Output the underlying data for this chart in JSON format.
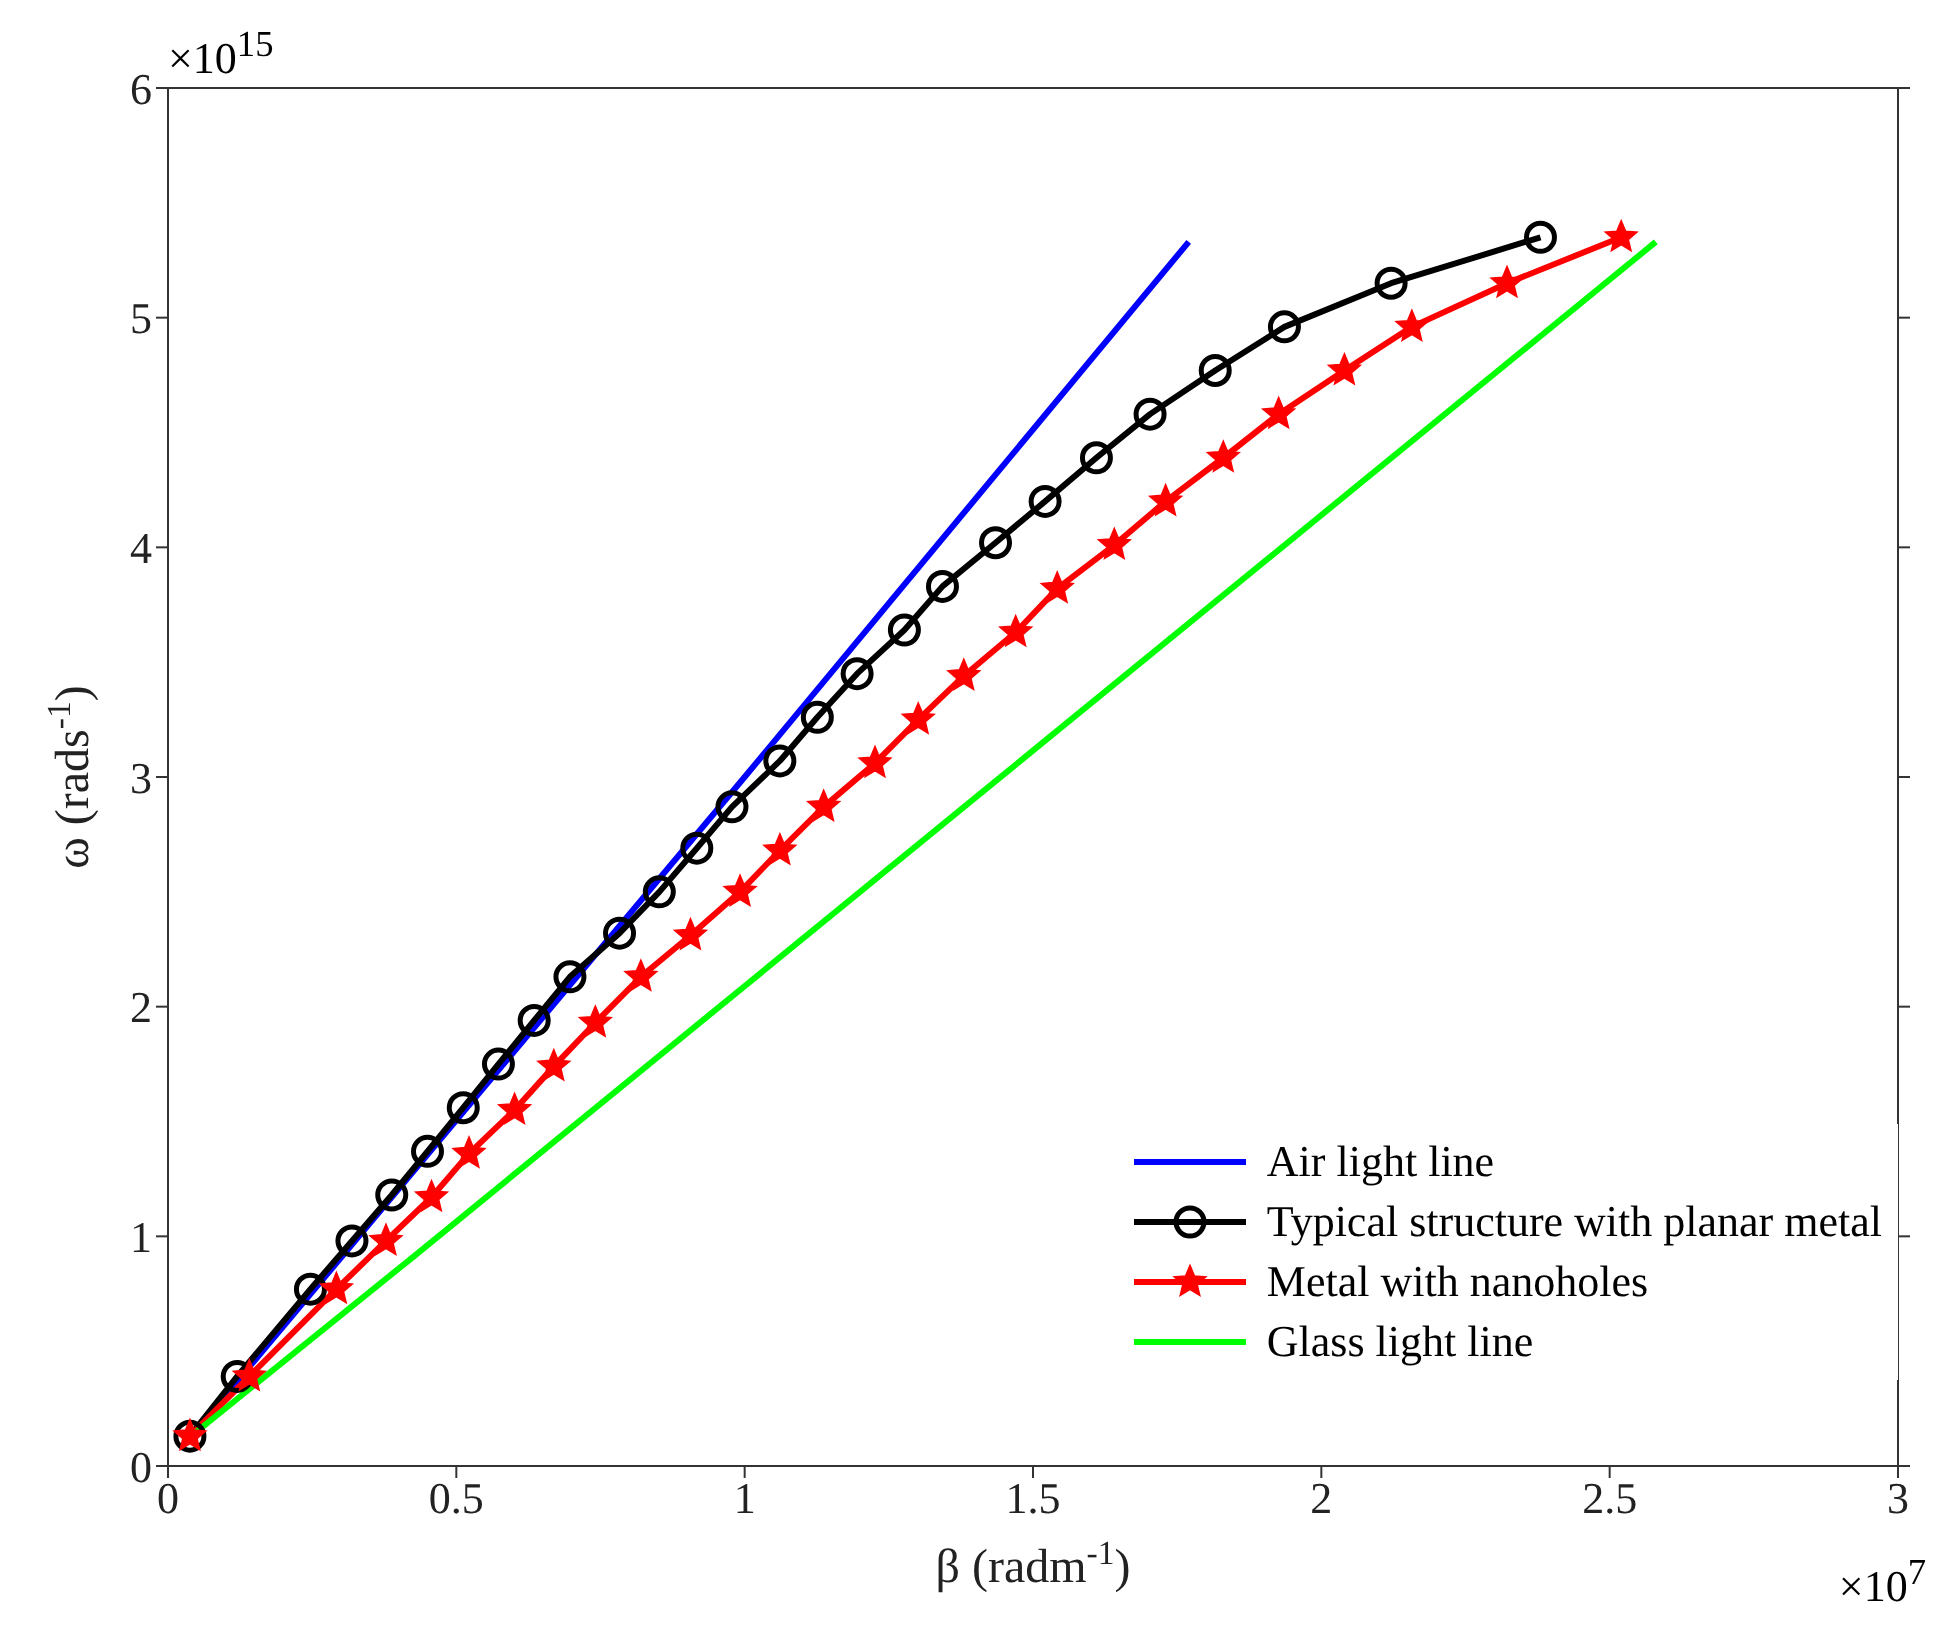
{
  "chart_data": {
    "type": "line",
    "xlabel": "β (radm$^{-1}$)",
    "ylabel": "ω (rads$^{-1}$)",
    "annotations": [
      "×10$^{15}$",
      "×10$^{7}$"
    ],
    "xlim": [
      0,
      3
    ],
    "xticks": [
      0,
      0.5,
      1,
      1.5,
      2,
      2.5,
      3
    ],
    "ylim": [
      0,
      6
    ],
    "yticks": [
      0,
      1,
      2,
      3,
      4,
      5,
      6
    ],
    "grid": false,
    "legend": "bottom right",
    "line_style": "solid",
    "series": [
      {
        "name": "Air light line",
        "color": "#0000ff",
        "marker": "none",
        "x": [
          0.04,
          1.0,
          1.77
        ],
        "values": [
          0.13,
          3.0,
          5.33
        ]
      },
      {
        "name": "Typical structure with planar metal",
        "color": "#000000",
        "marker": "circle",
        "x": [
          0.038,
          0.12,
          0.247,
          0.319,
          0.388,
          0.45,
          0.512,
          0.573,
          0.635,
          0.697,
          0.783,
          0.852,
          0.917,
          0.978,
          1.061,
          1.126,
          1.195,
          1.277,
          1.343,
          1.435,
          1.521,
          1.61,
          1.703,
          1.816,
          1.936,
          2.121,
          2.38
        ],
        "values": [
          0.13,
          0.39,
          0.77,
          0.98,
          1.18,
          1.37,
          1.56,
          1.75,
          1.94,
          2.13,
          2.32,
          2.5,
          2.69,
          2.87,
          3.07,
          3.26,
          3.45,
          3.64,
          3.83,
          4.02,
          4.2,
          4.39,
          4.58,
          4.77,
          4.96,
          5.15,
          5.35
        ]
      },
      {
        "name": "Metal with nanoholes",
        "color": "#ff0000",
        "marker": "star",
        "x": [
          0.038,
          0.141,
          0.292,
          0.378,
          0.457,
          0.522,
          0.601,
          0.669,
          0.741,
          0.82,
          0.906,
          0.992,
          1.061,
          1.137,
          1.226,
          1.301,
          1.38,
          1.47,
          1.542,
          1.641,
          1.73,
          1.83,
          1.926,
          2.04,
          2.157,
          2.322,
          2.52
        ],
        "values": [
          0.13,
          0.39,
          0.77,
          0.98,
          1.17,
          1.36,
          1.55,
          1.74,
          1.93,
          2.13,
          2.31,
          2.5,
          2.68,
          2.87,
          3.06,
          3.25,
          3.44,
          3.63,
          3.82,
          4.01,
          4.2,
          4.39,
          4.58,
          4.77,
          4.96,
          5.15,
          5.35
        ]
      },
      {
        "name": "Glass light line",
        "color": "#00ff00",
        "marker": "none",
        "x": [
          0.04,
          0.42,
          2.58
        ],
        "values": [
          0.13,
          0.9,
          5.33
        ]
      }
    ]
  }
}
